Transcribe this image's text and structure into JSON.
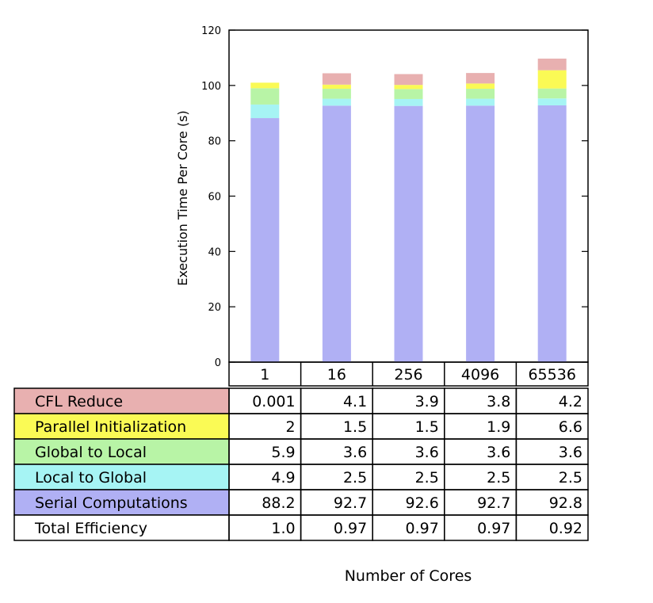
{
  "chart_data": {
    "type": "bar",
    "stacked": true,
    "categories": [
      "1",
      "16",
      "256",
      "4096",
      "65536"
    ],
    "ylabel": "Execution Time Per Core (s)",
    "xlabel": "Number of Cores",
    "ylim": [
      0,
      120
    ],
    "yticks": [
      "0",
      "20",
      "40",
      "60",
      "80",
      "100",
      "120"
    ],
    "series": [
      {
        "name": "Serial Computations",
        "color": "#b0b0f4",
        "values": [
          88.2,
          92.7,
          92.6,
          92.7,
          92.8
        ],
        "labels": [
          "88.2",
          "92.7",
          "92.6",
          "92.7",
          "92.8"
        ]
      },
      {
        "name": "Local to Global",
        "color": "#a6f4f4",
        "values": [
          4.9,
          2.5,
          2.5,
          2.5,
          2.5
        ],
        "labels": [
          "4.9",
          "2.5",
          "2.5",
          "2.5",
          "2.5"
        ]
      },
      {
        "name": "Global to Local",
        "color": "#b8f4a6",
        "values": [
          5.9,
          3.6,
          3.6,
          3.6,
          3.6
        ],
        "labels": [
          "5.9",
          "3.6",
          "3.6",
          "3.6",
          "3.6"
        ]
      },
      {
        "name": "Parallel Initialization",
        "color": "#fafa55",
        "values": [
          2,
          1.5,
          1.5,
          1.9,
          6.6
        ],
        "labels": [
          "2",
          "1.5",
          "1.5",
          "1.9",
          "6.6"
        ]
      },
      {
        "name": "CFL Reduce",
        "color": "#e8b0b0",
        "values": [
          0.001,
          4.1,
          3.9,
          3.8,
          4.2
        ],
        "labels": [
          "0.001",
          "4.1",
          "3.9",
          "3.8",
          "4.2"
        ]
      }
    ],
    "table": {
      "row_order": [
        "CFL Reduce",
        "Parallel Initialization",
        "Global to Local",
        "Local to Global",
        "Serial Computations"
      ],
      "extra_rows": [
        {
          "name": "Total Efficiency",
          "labels": [
            "1.0",
            "0.97",
            "0.97",
            "0.97",
            "0.92"
          ]
        }
      ]
    }
  }
}
